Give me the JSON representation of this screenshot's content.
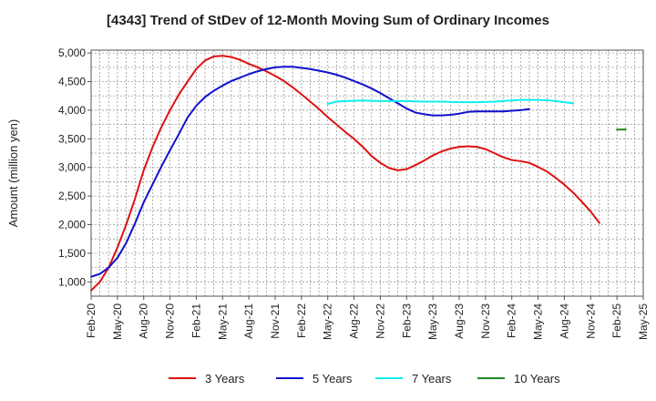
{
  "chart_data": {
    "type": "line",
    "title": "[4343]  Trend of StDev of 12-Month Moving Sum of Ordinary Incomes",
    "ylabel": "Amount (million yen)",
    "xlabel": "",
    "ylim": [
      750,
      5050
    ],
    "yticks": [
      1000,
      1500,
      2000,
      2500,
      3000,
      3500,
      4000,
      4500,
      5000
    ],
    "ytick_labels": [
      "1,000",
      "1,500",
      "2,000",
      "2,500",
      "3,000",
      "3,500",
      "4,000",
      "4,500",
      "5,000"
    ],
    "xticks": [
      "Feb-20",
      "May-20",
      "Aug-20",
      "Nov-20",
      "Feb-21",
      "May-21",
      "Aug-21",
      "Nov-21",
      "Feb-22",
      "May-22",
      "Aug-22",
      "Nov-22",
      "Feb-23",
      "May-23",
      "Aug-23",
      "Nov-23",
      "Feb-24",
      "May-24",
      "Aug-24",
      "Nov-24",
      "Feb-25",
      "May-25"
    ],
    "grid": true,
    "legend_position": "bottom",
    "series": [
      {
        "name": "3 Years",
        "color": "#dd1111",
        "points": [
          [
            0,
            850
          ],
          [
            1,
            1000
          ],
          [
            2,
            1250
          ],
          [
            3,
            1600
          ],
          [
            4,
            2000
          ],
          [
            5,
            2450
          ],
          [
            6,
            2950
          ],
          [
            7,
            3350
          ],
          [
            8,
            3700
          ],
          [
            9,
            4000
          ],
          [
            10,
            4270
          ],
          [
            11,
            4500
          ],
          [
            12,
            4720
          ],
          [
            13,
            4870
          ],
          [
            14,
            4940
          ],
          [
            15,
            4950
          ],
          [
            16,
            4930
          ],
          [
            17,
            4880
          ],
          [
            18,
            4810
          ],
          [
            19,
            4750
          ],
          [
            20,
            4680
          ],
          [
            21,
            4600
          ],
          [
            22,
            4510
          ],
          [
            23,
            4400
          ],
          [
            24,
            4280
          ],
          [
            25,
            4150
          ],
          [
            26,
            4020
          ],
          [
            27,
            3880
          ],
          [
            28,
            3750
          ],
          [
            29,
            3620
          ],
          [
            30,
            3500
          ],
          [
            31,
            3360
          ],
          [
            32,
            3200
          ],
          [
            33,
            3080
          ],
          [
            34,
            2990
          ],
          [
            35,
            2950
          ],
          [
            36,
            2970
          ],
          [
            37,
            3040
          ],
          [
            38,
            3120
          ],
          [
            39,
            3210
          ],
          [
            40,
            3280
          ],
          [
            41,
            3330
          ],
          [
            42,
            3360
          ],
          [
            43,
            3370
          ],
          [
            44,
            3360
          ],
          [
            45,
            3320
          ],
          [
            46,
            3250
          ],
          [
            47,
            3180
          ],
          [
            48,
            3130
          ],
          [
            49,
            3110
          ],
          [
            50,
            3080
          ],
          [
            51,
            3010
          ],
          [
            52,
            2930
          ],
          [
            53,
            2820
          ],
          [
            54,
            2700
          ],
          [
            55,
            2560
          ],
          [
            56,
            2400
          ],
          [
            57,
            2230
          ],
          [
            58,
            2030
          ]
        ]
      },
      {
        "name": "5 Years",
        "color": "#1111cc",
        "points": [
          [
            0,
            1090
          ],
          [
            1,
            1140
          ],
          [
            2,
            1250
          ],
          [
            3,
            1420
          ],
          [
            4,
            1680
          ],
          [
            5,
            2020
          ],
          [
            6,
            2390
          ],
          [
            7,
            2700
          ],
          [
            8,
            3010
          ],
          [
            9,
            3300
          ],
          [
            10,
            3580
          ],
          [
            11,
            3870
          ],
          [
            12,
            4080
          ],
          [
            13,
            4230
          ],
          [
            14,
            4340
          ],
          [
            15,
            4430
          ],
          [
            16,
            4510
          ],
          [
            17,
            4570
          ],
          [
            18,
            4630
          ],
          [
            19,
            4680
          ],
          [
            20,
            4720
          ],
          [
            21,
            4750
          ],
          [
            22,
            4760
          ],
          [
            23,
            4760
          ],
          [
            24,
            4740
          ],
          [
            25,
            4720
          ],
          [
            26,
            4690
          ],
          [
            27,
            4660
          ],
          [
            28,
            4620
          ],
          [
            29,
            4570
          ],
          [
            30,
            4510
          ],
          [
            31,
            4450
          ],
          [
            32,
            4380
          ],
          [
            33,
            4300
          ],
          [
            34,
            4210
          ],
          [
            35,
            4120
          ],
          [
            36,
            4030
          ],
          [
            37,
            3960
          ],
          [
            38,
            3930
          ],
          [
            39,
            3910
          ],
          [
            40,
            3910
          ],
          [
            41,
            3920
          ],
          [
            42,
            3940
          ],
          [
            43,
            3970
          ],
          [
            44,
            3980
          ],
          [
            45,
            3980
          ],
          [
            46,
            3980
          ],
          [
            47,
            3980
          ],
          [
            48,
            3990
          ],
          [
            49,
            4000
          ],
          [
            50,
            4020
          ]
        ]
      },
      {
        "name": "7 Years",
        "color": "#11eeee",
        "points": [
          [
            0,
            4110
          ],
          [
            1,
            4150
          ],
          [
            2,
            4160
          ],
          [
            3,
            4165
          ],
          [
            4,
            4170
          ],
          [
            5,
            4165
          ],
          [
            6,
            4160
          ],
          [
            7,
            4160
          ],
          [
            8,
            4160
          ],
          [
            9,
            4160
          ],
          [
            10,
            4155
          ],
          [
            11,
            4150
          ],
          [
            12,
            4150
          ],
          [
            13,
            4150
          ],
          [
            14,
            4145
          ],
          [
            15,
            4140
          ],
          [
            16,
            4140
          ],
          [
            17,
            4140
          ],
          [
            18,
            4145
          ],
          [
            19,
            4150
          ],
          [
            20,
            4160
          ],
          [
            21,
            4170
          ],
          [
            22,
            4180
          ],
          [
            23,
            4180
          ],
          [
            24,
            4180
          ],
          [
            25,
            4175
          ],
          [
            26,
            4160
          ],
          [
            27,
            4140
          ],
          [
            28,
            4120
          ]
        ]
      },
      {
        "name": "10 Years",
        "color": "#228822",
        "points": [
          [
            0,
            3660
          ],
          [
            1,
            3665
          ]
        ]
      }
    ]
  }
}
